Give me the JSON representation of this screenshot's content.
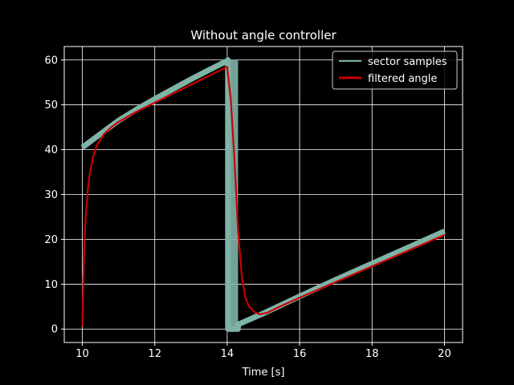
{
  "chart_data": {
    "type": "line",
    "title": "Without angle controller",
    "xlabel": "Time [s]",
    "ylabel": "",
    "xlim": [
      9.5,
      20.5
    ],
    "ylim": [
      -3,
      63
    ],
    "xticks": [
      10,
      12,
      14,
      16,
      18,
      20
    ],
    "yticks": [
      0,
      10,
      20,
      30,
      40,
      50,
      60
    ],
    "xtick_labels": [
      "10",
      "12",
      "14",
      "16",
      "18",
      "20"
    ],
    "ytick_labels": [
      "0",
      "10",
      "20",
      "30",
      "40",
      "50",
      "60"
    ],
    "grid": true,
    "legend_position": "top-right",
    "background": "#000000",
    "foreground": "#ffffff",
    "series": [
      {
        "name": "sector samples",
        "color": "#7fb3a8",
        "x": [
          10,
          10.5,
          11,
          11.5,
          12,
          12.5,
          13,
          13.5,
          14,
          14.02,
          14.02,
          14.3,
          14.3,
          15,
          16,
          17,
          18,
          19,
          20
        ],
        "y": [
          40.5,
          43.5,
          46.5,
          49.0,
          51.3,
          53.5,
          55.7,
          57.8,
          59.8,
          60,
          0,
          0,
          1,
          3.5,
          7.3,
          11.0,
          14.6,
          18.2,
          21.8
        ],
        "band_x": [
          14.0,
          14.3
        ],
        "band_y": [
          0,
          60
        ]
      },
      {
        "name": "filtered angle",
        "color": "#cc0000",
        "x": [
          10,
          10.03,
          10.06,
          10.1,
          10.15,
          10.2,
          10.3,
          10.4,
          10.6,
          10.8,
          11,
          11.5,
          12,
          12.5,
          13,
          13.5,
          14,
          14.1,
          14.2,
          14.3,
          14.4,
          14.5,
          14.6,
          14.75,
          14.9,
          15.1,
          15.4,
          16,
          17,
          18,
          19,
          20
        ],
        "y": [
          0.5,
          12,
          20,
          26,
          31,
          34.5,
          38.5,
          41,
          43.5,
          45,
          46.2,
          48.5,
          50.5,
          52.5,
          54.5,
          56.5,
          58.5,
          51,
          38,
          22,
          12,
          7,
          5,
          3.8,
          3.3,
          3.6,
          4.8,
          7.0,
          10.5,
          14.0,
          17.5,
          21.0
        ]
      }
    ]
  }
}
